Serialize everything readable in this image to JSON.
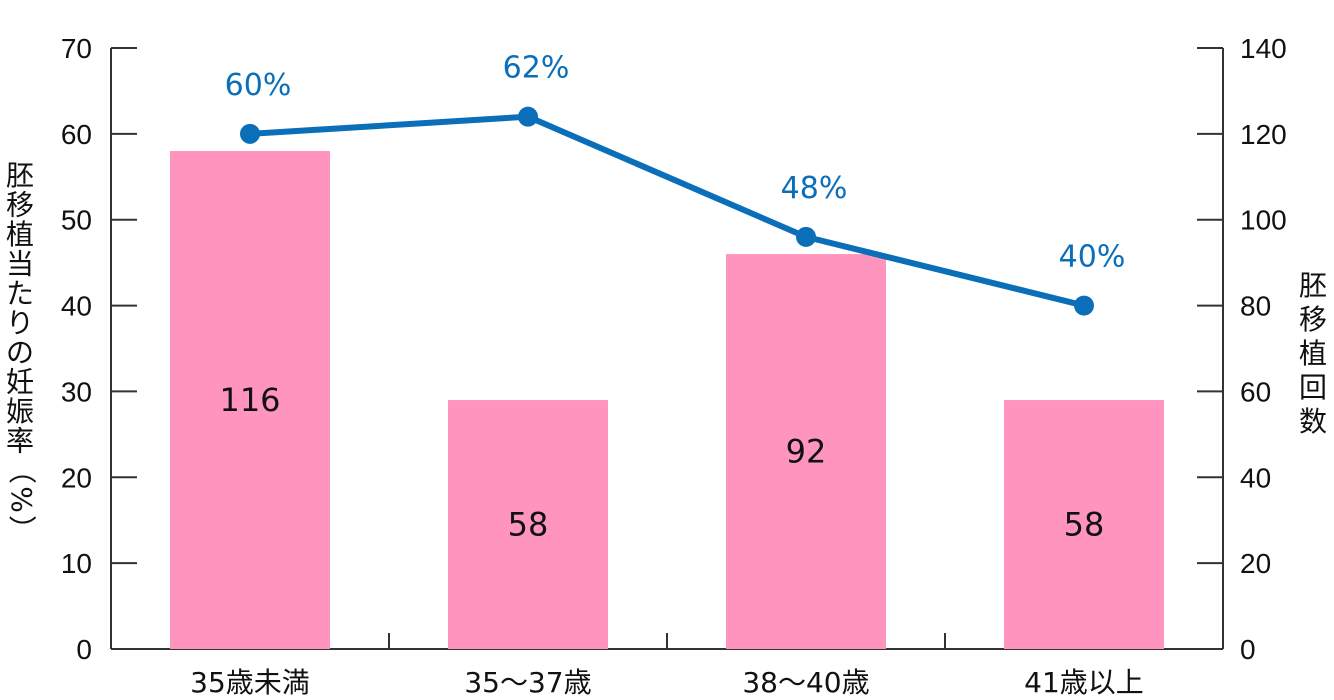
{
  "chart_data": {
    "type": "bar+line",
    "categories": [
      "35歳未満",
      "35～37歳",
      "38～40歳",
      "41歳以上"
    ],
    "bars": {
      "name": "胚移植回数",
      "axis": "right",
      "values": [
        116,
        58,
        92,
        58
      ],
      "labels": [
        "116",
        "58",
        "92",
        "58"
      ],
      "color": "#ff94bf"
    },
    "line": {
      "name": "胚移植当たりの妊娠率",
      "axis": "left",
      "values": [
        60,
        62,
        48,
        40
      ],
      "labels": [
        "60%",
        "62%",
        "48%",
        "40%"
      ],
      "color": "#0a6fb8"
    },
    "left_axis": {
      "label": "胚移植当たりの妊娠率（%）",
      "ylim": [
        0,
        70
      ],
      "ticks": [
        0,
        10,
        20,
        30,
        40,
        50,
        60,
        70
      ]
    },
    "right_axis": {
      "label": "胚移植回数",
      "ylim": [
        0,
        140
      ],
      "ticks": [
        0,
        20,
        40,
        60,
        80,
        100,
        120,
        140
      ]
    },
    "grid": false,
    "legend": "none"
  }
}
